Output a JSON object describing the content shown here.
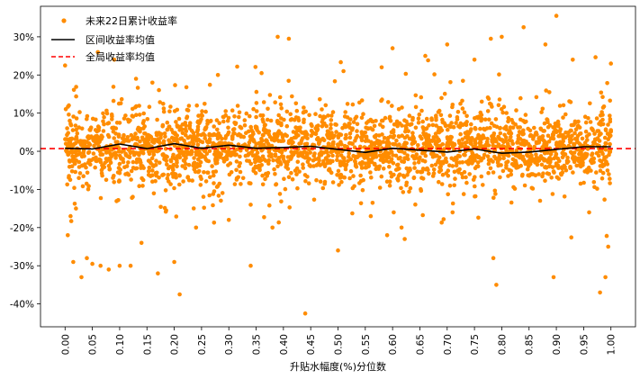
{
  "chart_data": {
    "type": "scatter",
    "xlabel": "升贴水幅度(%)分位数",
    "ylabel": "",
    "xlim": [
      -0.045,
      1.045
    ],
    "ylim": [
      -46,
      38
    ],
    "x_ticks": [
      "0.00",
      "0.05",
      "0.10",
      "0.15",
      "0.20",
      "0.25",
      "0.30",
      "0.35",
      "0.40",
      "0.45",
      "0.50",
      "0.55",
      "0.60",
      "0.65",
      "0.70",
      "0.75",
      "0.80",
      "0.85",
      "0.90",
      "0.95",
      "1.00"
    ],
    "y_ticks": [
      "-40%",
      "-30%",
      "-20%",
      "-10%",
      "0%",
      "10%",
      "20%",
      "30%"
    ],
    "grid": false,
    "legend_position": "top-left",
    "colors": {
      "scatter": "#ff8c00",
      "interval_mean": "#000000",
      "global_mean": "#ff0000"
    },
    "series": [
      {
        "name": "未来22日累计收益率",
        "type": "scatter",
        "note_points": "dense orange dot cloud; core spread roughly -10% to +10%, tails to about -42% and +35%",
        "points": [
          [
            0.0,
            22.5
          ],
          [
            0.005,
            -22
          ],
          [
            0.01,
            -17
          ],
          [
            0.015,
            -29
          ],
          [
            0.02,
            -15
          ],
          [
            0.03,
            -33
          ],
          [
            0.04,
            -28
          ],
          [
            0.05,
            -29.5
          ],
          [
            0.06,
            26
          ],
          [
            0.065,
            -30
          ],
          [
            0.08,
            -31
          ],
          [
            0.09,
            24
          ],
          [
            0.1,
            -30
          ],
          [
            0.12,
            -30
          ],
          [
            0.13,
            19
          ],
          [
            0.14,
            -24
          ],
          [
            0.16,
            18
          ],
          [
            0.17,
            -32
          ],
          [
            0.2,
            -29
          ],
          [
            0.21,
            -37.5
          ],
          [
            0.24,
            -20
          ],
          [
            0.28,
            20
          ],
          [
            0.3,
            -18
          ],
          [
            0.34,
            -30
          ],
          [
            0.36,
            20.5
          ],
          [
            0.38,
            -20
          ],
          [
            0.41,
            29.5
          ],
          [
            0.44,
            -42.5
          ],
          [
            0.5,
            -26
          ],
          [
            0.51,
            21
          ],
          [
            0.56,
            -17
          ],
          [
            0.58,
            22
          ],
          [
            0.59,
            -22
          ],
          [
            0.6,
            27
          ],
          [
            0.66,
            25
          ],
          [
            0.7,
            28
          ],
          [
            0.71,
            -16
          ],
          [
            0.75,
            24
          ],
          [
            0.78,
            29.5
          ],
          [
            0.79,
            -35
          ],
          [
            0.8,
            30
          ],
          [
            0.84,
            32.5
          ],
          [
            0.88,
            28
          ],
          [
            0.9,
            35.5
          ],
          [
            0.895,
            -33
          ],
          [
            0.93,
            24
          ],
          [
            0.96,
            -16
          ],
          [
            0.98,
            -37
          ],
          [
            0.99,
            -33
          ],
          [
            0.995,
            -25
          ],
          [
            1.0,
            23
          ]
        ]
      },
      {
        "name": "区间收益率均值",
        "type": "line",
        "x": [
          0.0,
          0.05,
          0.1,
          0.15,
          0.2,
          0.25,
          0.3,
          0.35,
          0.4,
          0.45,
          0.5,
          0.55,
          0.6,
          0.65,
          0.7,
          0.75,
          0.8,
          0.85,
          0.9,
          0.95,
          1.0
        ],
        "values": [
          0.8,
          0.6,
          1.9,
          0.7,
          2.0,
          0.8,
          1.6,
          0.8,
          1.0,
          1.3,
          0.5,
          -0.3,
          0.8,
          0.3,
          -0.2,
          0.6,
          -0.5,
          -0.2,
          0.5,
          1.2,
          1.2
        ]
      },
      {
        "name": "全局收益率均值",
        "type": "hline",
        "value": 0.7
      }
    ]
  }
}
